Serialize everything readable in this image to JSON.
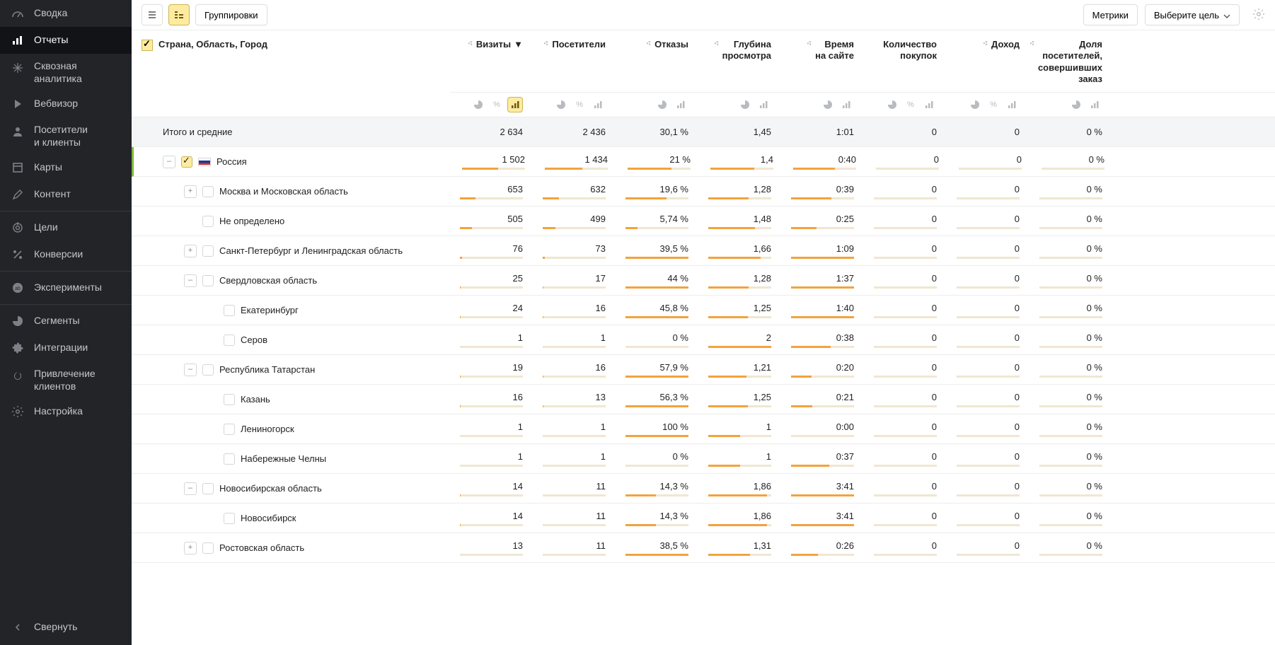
{
  "colors": {
    "sidebar_bg": "#222428",
    "accent": "#ffeba0",
    "bar": "#f2a33c",
    "bar_bg": "#f0e6d2",
    "selected": "#7fba3d"
  },
  "sidebar": {
    "items": [
      {
        "id": "summary",
        "label": "Сводка",
        "icon": "gauge"
      },
      {
        "id": "reports",
        "label": "Отчеты",
        "icon": "bars",
        "active": true
      },
      {
        "id": "e2e",
        "label": "Сквозная\nаналитика",
        "icon": "sparkle",
        "tall": true
      },
      {
        "id": "webvisor",
        "label": "Вебвизор",
        "icon": "play"
      },
      {
        "id": "visitors",
        "label": "Посетители\nи клиенты",
        "icon": "user",
        "tall": true
      },
      {
        "id": "maps",
        "label": "Карты",
        "icon": "square"
      },
      {
        "id": "content",
        "label": "Контент",
        "icon": "pencil"
      },
      {
        "sep": true
      },
      {
        "id": "goals",
        "label": "Цели",
        "icon": "target"
      },
      {
        "id": "conv",
        "label": "Конверсии",
        "icon": "percent"
      },
      {
        "sep": true
      },
      {
        "id": "exp",
        "label": "Эксперименты",
        "icon": "ab"
      },
      {
        "sep": true
      },
      {
        "id": "seg",
        "label": "Сегменты",
        "icon": "pie"
      },
      {
        "id": "int",
        "label": "Интеграции",
        "icon": "puzzle"
      },
      {
        "id": "acq",
        "label": "Привлечение\nклиентов",
        "icon": "fire",
        "tall": true
      },
      {
        "id": "set",
        "label": "Настройка",
        "icon": "gear"
      }
    ],
    "collapse": "Свернуть"
  },
  "toolbar": {
    "group": "Группировки",
    "metrics": "Метрики",
    "goal": "Выберите цель"
  },
  "header": {
    "name_col": "Страна, Область, Город",
    "cols": [
      {
        "id": "visits",
        "label": "Визиты",
        "sort": true,
        "pies": [
          "pie",
          "pct",
          "bars"
        ],
        "active_pie": 2
      },
      {
        "id": "visitors",
        "label": "Посетители",
        "pies": [
          "pie",
          "pct",
          "bars"
        ]
      },
      {
        "id": "bounce",
        "label": "Отказы",
        "pies": [
          "pie",
          "bars"
        ]
      },
      {
        "id": "depth",
        "label": "Глубина\nпросмотра",
        "pies": [
          "pie",
          "bars"
        ]
      },
      {
        "id": "time",
        "label": "Время\nна сайте",
        "pies": [
          "pie",
          "bars"
        ]
      },
      {
        "id": "purch",
        "label": "Количество\nпокупок",
        "pies": [
          "pie",
          "pct",
          "bars"
        ],
        "no_dot": true
      },
      {
        "id": "rev",
        "label": "Доход",
        "pies": [
          "pie",
          "pct",
          "bars"
        ]
      },
      {
        "id": "share",
        "label": "Доля\nпосетителей,\nсовершивших\nзаказ",
        "pies": [
          "pie",
          "bars"
        ]
      }
    ]
  },
  "totals": {
    "label": "Итого и средние",
    "v": [
      "2 634",
      "2 436",
      "30,1 %",
      "1,45",
      "1:01",
      "0",
      "0",
      "0 %"
    ]
  },
  "rows": [
    {
      "level": 1,
      "exp": "-",
      "ck": true,
      "flag": [
        "#ffffff",
        "#0039a6",
        "#d52b1e"
      ],
      "name": "Россия",
      "v": [
        "1 502",
        "1 434",
        "21 %",
        "1,4",
        "0:40",
        "0",
        "0",
        "0 %"
      ],
      "bars": [
        57,
        59,
        70,
        70,
        66,
        0,
        0,
        0
      ],
      "sel": true
    },
    {
      "level": 2,
      "exp": "+",
      "name": "Москва и Московская область",
      "v": [
        "653",
        "632",
        "19,6 %",
        "1,28",
        "0:39",
        "0",
        "0",
        "0 %"
      ],
      "bars": [
        25,
        26,
        65,
        64,
        64,
        0,
        0,
        0
      ]
    },
    {
      "level": 2,
      "name": "Не определено",
      "v": [
        "505",
        "499",
        "5,74 %",
        "1,48",
        "0:25",
        "0",
        "0",
        "0 %"
      ],
      "bars": [
        19,
        20,
        19,
        74,
        41,
        0,
        0,
        0
      ]
    },
    {
      "level": 2,
      "exp": "+",
      "name": "Санкт-Петербург и Ленинградская область",
      "v": [
        "76",
        "73",
        "39,5 %",
        "1,66",
        "1:09",
        "0",
        "0",
        "0 %"
      ],
      "bars": [
        3,
        3,
        100,
        83,
        100,
        0,
        0,
        0
      ]
    },
    {
      "level": 2,
      "exp": "-",
      "name": "Свердловская область",
      "v": [
        "25",
        "17",
        "44 %",
        "1,28",
        "1:37",
        "0",
        "0",
        "0 %"
      ],
      "bars": [
        1,
        1,
        100,
        64,
        100,
        0,
        0,
        0
      ]
    },
    {
      "level": 3,
      "name": "Екатеринбург",
      "v": [
        "24",
        "16",
        "45,8 %",
        "1,25",
        "1:40",
        "0",
        "0",
        "0 %"
      ],
      "bars": [
        1,
        1,
        100,
        63,
        100,
        0,
        0,
        0
      ]
    },
    {
      "level": 3,
      "name": "Серов",
      "v": [
        "1",
        "1",
        "0 %",
        "2",
        "0:38",
        "0",
        "0",
        "0 %"
      ],
      "bars": [
        0,
        0,
        0,
        100,
        63,
        0,
        0,
        0
      ]
    },
    {
      "level": 2,
      "exp": "-",
      "name": "Республика Татарстан",
      "v": [
        "19",
        "16",
        "57,9 %",
        "1,21",
        "0:20",
        "0",
        "0",
        "0 %"
      ],
      "bars": [
        1,
        1,
        100,
        61,
        33,
        0,
        0,
        0
      ]
    },
    {
      "level": 3,
      "name": "Казань",
      "v": [
        "16",
        "13",
        "56,3 %",
        "1,25",
        "0:21",
        "0",
        "0",
        "0 %"
      ],
      "bars": [
        1,
        1,
        100,
        63,
        34,
        0,
        0,
        0
      ]
    },
    {
      "level": 3,
      "name": "Лениногорск",
      "v": [
        "1",
        "1",
        "100 %",
        "1",
        "0:00",
        "0",
        "0",
        "0 %"
      ],
      "bars": [
        0,
        0,
        100,
        50,
        0,
        0,
        0,
        0
      ]
    },
    {
      "level": 3,
      "name": "Набережные Челны",
      "v": [
        "1",
        "1",
        "0 %",
        "1",
        "0:37",
        "0",
        "0",
        "0 %"
      ],
      "bars": [
        0,
        0,
        0,
        50,
        61,
        0,
        0,
        0
      ]
    },
    {
      "level": 2,
      "exp": "-",
      "name": "Новосибирская область",
      "v": [
        "14",
        "11",
        "14,3 %",
        "1,86",
        "3:41",
        "0",
        "0",
        "0 %"
      ],
      "bars": [
        1,
        0,
        48,
        93,
        100,
        0,
        0,
        0
      ]
    },
    {
      "level": 3,
      "name": "Новосибирск",
      "v": [
        "14",
        "11",
        "14,3 %",
        "1,86",
        "3:41",
        "0",
        "0",
        "0 %"
      ],
      "bars": [
        1,
        0,
        48,
        93,
        100,
        0,
        0,
        0
      ]
    },
    {
      "level": 2,
      "exp": "+",
      "name": "Ростовская область",
      "v": [
        "13",
        "11",
        "38,5 %",
        "1,31",
        "0:26",
        "0",
        "0",
        "0 %"
      ],
      "bars": [
        0,
        0,
        100,
        66,
        43,
        0,
        0,
        0
      ]
    }
  ]
}
